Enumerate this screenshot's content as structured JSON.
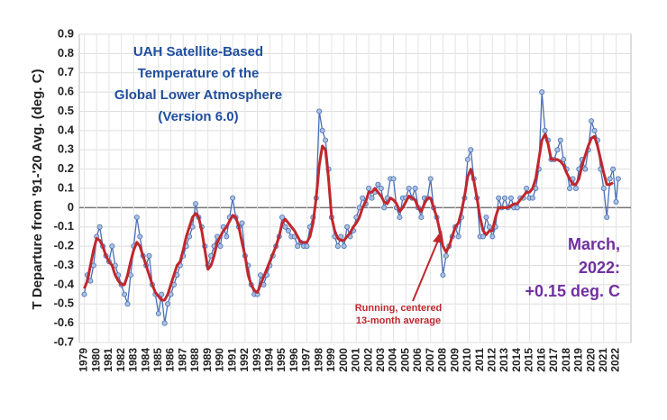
{
  "chart_data": {
    "type": "line",
    "title": [
      "UAH Satellite-Based",
      "Temperature of the",
      "Global Lower Atmosphere",
      "(Version 6.0)"
    ],
    "ylabel": "T Departure from '91-'20 Avg. (deg. C)",
    "annotations": {
      "running": [
        "Running, centered",
        "13-month average"
      ],
      "latest": [
        "March,",
        "2022:",
        "+0.15 deg. C"
      ]
    },
    "x": [
      1979,
      1979.25,
      1979.5,
      1979.75,
      1980,
      1980.25,
      1980.5,
      1980.75,
      1981,
      1981.25,
      1981.5,
      1981.75,
      1982,
      1982.25,
      1982.5,
      1982.75,
      1983,
      1983.25,
      1983.5,
      1983.75,
      1984,
      1984.25,
      1984.5,
      1984.75,
      1985,
      1985.25,
      1985.5,
      1985.75,
      1986,
      1986.25,
      1986.5,
      1986.75,
      1987,
      1987.25,
      1987.5,
      1987.75,
      1988,
      1988.25,
      1988.5,
      1988.75,
      1989,
      1989.25,
      1989.5,
      1989.75,
      1990,
      1990.25,
      1990.5,
      1990.75,
      1991,
      1991.25,
      1991.5,
      1991.75,
      1992,
      1992.25,
      1992.5,
      1992.75,
      1993,
      1993.25,
      1993.5,
      1993.75,
      1994,
      1994.25,
      1994.5,
      1994.75,
      1995,
      1995.25,
      1995.5,
      1995.75,
      1996,
      1996.25,
      1996.5,
      1996.75,
      1997,
      1997.25,
      1997.5,
      1997.75,
      1998,
      1998.25,
      1998.5,
      1998.75,
      1999,
      1999.25,
      1999.5,
      1999.75,
      2000,
      2000.25,
      2000.5,
      2000.75,
      2001,
      2001.25,
      2001.5,
      2001.75,
      2002,
      2002.25,
      2002.5,
      2002.75,
      2003,
      2003.25,
      2003.5,
      2003.75,
      2004,
      2004.25,
      2004.5,
      2004.75,
      2005,
      2005.25,
      2005.5,
      2005.75,
      2006,
      2006.25,
      2006.5,
      2006.75,
      2007,
      2007.25,
      2007.5,
      2007.75,
      2008,
      2008.25,
      2008.5,
      2008.75,
      2009,
      2009.25,
      2009.5,
      2009.75,
      2010,
      2010.25,
      2010.5,
      2010.75,
      2011,
      2011.25,
      2011.5,
      2011.75,
      2012,
      2012.25,
      2012.5,
      2012.75,
      2013,
      2013.25,
      2013.5,
      2013.75,
      2014,
      2014.25,
      2014.5,
      2014.75,
      2015,
      2015.25,
      2015.5,
      2015.75,
      2016,
      2016.25,
      2016.5,
      2016.75,
      2017,
      2017.25,
      2017.5,
      2017.75,
      2018,
      2018.25,
      2018.5,
      2018.75,
      2019,
      2019.25,
      2019.5,
      2019.75,
      2020,
      2020.25,
      2020.5,
      2020.75,
      2021,
      2021.25,
      2021.5,
      2021.75,
      2022,
      2022.17
    ],
    "series": [
      {
        "color": "#4a6fb5",
        "marker": "#a9c0e0",
        "values": [
          -0.45,
          -0.35,
          -0.38,
          -0.3,
          -0.15,
          -0.1,
          -0.2,
          -0.25,
          -0.28,
          -0.2,
          -0.3,
          -0.35,
          -0.4,
          -0.45,
          -0.5,
          -0.35,
          -0.2,
          -0.05,
          -0.15,
          -0.25,
          -0.3,
          -0.25,
          -0.4,
          -0.45,
          -0.55,
          -0.45,
          -0.6,
          -0.5,
          -0.45,
          -0.4,
          -0.35,
          -0.3,
          -0.25,
          -0.2,
          -0.15,
          -0.1,
          0.02,
          -0.05,
          -0.1,
          -0.2,
          -0.3,
          -0.25,
          -0.2,
          -0.15,
          -0.2,
          -0.1,
          -0.15,
          -0.05,
          0.05,
          -0.05,
          -0.1,
          -0.08,
          -0.25,
          -0.3,
          -0.4,
          -0.45,
          -0.45,
          -0.35,
          -0.4,
          -0.35,
          -0.3,
          -0.25,
          -0.2,
          -0.15,
          -0.05,
          -0.1,
          -0.12,
          -0.15,
          -0.15,
          -0.2,
          -0.18,
          -0.2,
          -0.2,
          -0.1,
          -0.05,
          0.05,
          0.5,
          0.4,
          0.35,
          0.2,
          -0.05,
          -0.15,
          -0.2,
          -0.15,
          -0.2,
          -0.1,
          -0.15,
          -0.12,
          -0.05,
          0,
          0.05,
          0.02,
          0.1,
          0.05,
          0.08,
          0.12,
          0.1,
          0,
          0.05,
          0.15,
          0.15,
          0,
          -0.05,
          0.05,
          0.05,
          0.1,
          0.05,
          0.1,
          0,
          -0.05,
          0.05,
          0.05,
          0.15,
          0,
          -0.05,
          -0.15,
          -0.35,
          -0.25,
          -0.2,
          -0.15,
          -0.1,
          -0.15,
          -0.05,
          0.05,
          0.25,
          0.3,
          0.15,
          0.05,
          -0.15,
          -0.15,
          -0.05,
          -0.1,
          -0.15,
          -0.1,
          0.05,
          0,
          0.05,
          0,
          0.05,
          0,
          0,
          0.05,
          0.05,
          0.1,
          0.05,
          0.05,
          0.1,
          0.2,
          0.6,
          0.4,
          0.35,
          0.25,
          0.25,
          0.3,
          0.35,
          0.25,
          0.2,
          0.1,
          0.15,
          0.1,
          0.2,
          0.25,
          0.2,
          0.3,
          0.45,
          0.4,
          0.35,
          0.2,
          0.1,
          -0.05,
          0.15,
          0.2,
          0.03,
          0.15
        ]
      },
      {
        "color": "#c0272d",
        "values": [
          -0.42,
          -0.38,
          -0.3,
          -0.22,
          -0.16,
          -0.17,
          -0.2,
          -0.25,
          -0.28,
          -0.3,
          -0.35,
          -0.38,
          -0.4,
          -0.4,
          -0.35,
          -0.28,
          -0.22,
          -0.18,
          -0.2,
          -0.25,
          -0.3,
          -0.35,
          -0.4,
          -0.44,
          -0.46,
          -0.48,
          -0.48,
          -0.45,
          -0.4,
          -0.35,
          -0.3,
          -0.28,
          -0.22,
          -0.15,
          -0.1,
          -0.05,
          -0.03,
          -0.05,
          -0.12,
          -0.22,
          -0.32,
          -0.3,
          -0.25,
          -0.18,
          -0.15,
          -0.12,
          -0.1,
          -0.07,
          -0.04,
          -0.05,
          -0.1,
          -0.18,
          -0.25,
          -0.35,
          -0.4,
          -0.43,
          -0.44,
          -0.4,
          -0.36,
          -0.32,
          -0.28,
          -0.24,
          -0.2,
          -0.15,
          -0.08,
          -0.06,
          -0.08,
          -0.1,
          -0.12,
          -0.15,
          -0.18,
          -0.18,
          -0.18,
          -0.15,
          -0.08,
          0.05,
          0.22,
          0.32,
          0.3,
          0.15,
          -0.05,
          -0.12,
          -0.16,
          -0.17,
          -0.17,
          -0.15,
          -0.13,
          -0.1,
          -0.08,
          -0.05,
          0,
          0.03,
          0.08,
          0.08,
          0.1,
          0.08,
          0.06,
          0.03,
          0.02,
          0.05,
          0.04,
          0.02,
          -0.02,
          0,
          0.03,
          0.06,
          0.05,
          0.04,
          0,
          -0.02,
          0.02,
          0.05,
          0.05,
          0,
          -0.05,
          -0.12,
          -0.2,
          -0.23,
          -0.2,
          -0.15,
          -0.1,
          -0.08,
          -0.02,
          0.06,
          0.16,
          0.2,
          0.14,
          0.05,
          -0.05,
          -0.12,
          -0.14,
          -0.12,
          -0.12,
          -0.05,
          0,
          0,
          0,
          0,
          0.01,
          0.02,
          0.02,
          0.04,
          0.06,
          0.08,
          0.08,
          0.1,
          0.15,
          0.25,
          0.35,
          0.38,
          0.33,
          0.25,
          0.25,
          0.25,
          0.24,
          0.22,
          0.18,
          0.15,
          0.12,
          0.12,
          0.15,
          0.22,
          0.27,
          0.32,
          0.36,
          0.37,
          0.32,
          0.25,
          0.18,
          0.12,
          0.12,
          0.13,
          null,
          null
        ]
      }
    ],
    "xlim": [
      1978.6,
      2023.2
    ],
    "ylim": [
      -0.7,
      0.9
    ],
    "xticks": [
      1979,
      1980,
      1981,
      1982,
      1983,
      1984,
      1985,
      1986,
      1987,
      1988,
      1989,
      1990,
      1991,
      1992,
      1993,
      1994,
      1995,
      1996,
      1997,
      1998,
      1999,
      2000,
      2001,
      2002,
      2003,
      2004,
      2005,
      2006,
      2007,
      2008,
      2009,
      2010,
      2011,
      2012,
      2013,
      2014,
      2015,
      2016,
      2017,
      2018,
      2019,
      2020,
      2021,
      2022
    ],
    "yticks": [
      0.9,
      0.8,
      0.7,
      0.6,
      0.5,
      0.4,
      0.3,
      0.2,
      0.1,
      0,
      -0.1,
      -0.2,
      -0.3,
      -0.4,
      -0.5,
      -0.6,
      -0.7
    ],
    "grid": true
  }
}
